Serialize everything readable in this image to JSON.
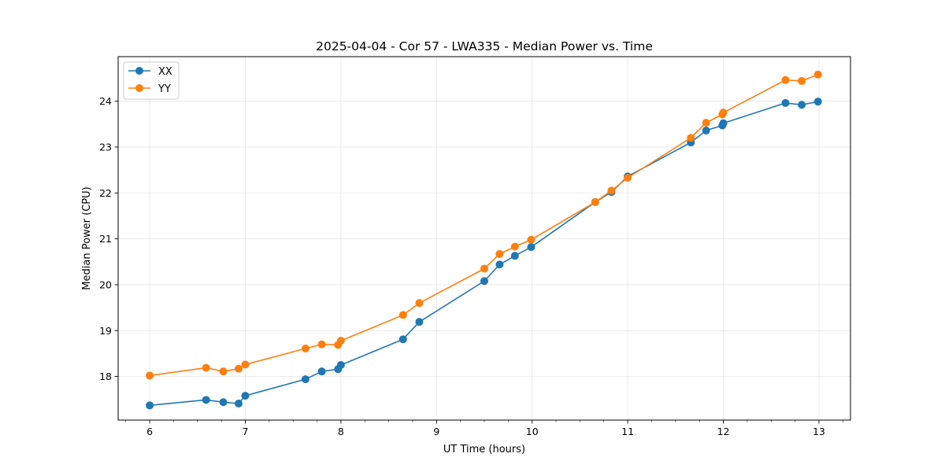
{
  "chart_data": {
    "type": "line",
    "title": "2025-04-04 - Cor 57 - LWA335 - Median Power vs. Time",
    "xlabel": "UT Time (hours)",
    "ylabel": "Median Power (CPU)",
    "xlim": [
      5.67,
      13.33
    ],
    "ylim": [
      17.05,
      24.97
    ],
    "xticks": [
      6,
      7,
      8,
      9,
      10,
      11,
      12,
      13
    ],
    "xticks_labels": [
      "6",
      "7",
      "8",
      "9",
      "10",
      "11",
      "12",
      "13"
    ],
    "x_minor_step": 0.25,
    "yticks": [
      18,
      19,
      20,
      21,
      22,
      23,
      24
    ],
    "yticks_labels": [
      "18",
      "19",
      "20",
      "21",
      "22",
      "23",
      "24"
    ],
    "grid": true,
    "legend_position": "top-left",
    "series": [
      {
        "name": "XX",
        "color": "#1f77b4",
        "x": [
          6.0,
          6.59,
          6.77,
          6.93,
          7.0,
          7.63,
          7.8,
          7.97,
          8.0,
          8.65,
          8.82,
          9.5,
          9.66,
          9.82,
          9.99,
          10.66,
          10.83,
          11.0,
          11.66,
          11.82,
          11.99,
          12.0,
          12.65,
          12.82,
          12.99
        ],
        "y": [
          17.37,
          17.49,
          17.44,
          17.41,
          17.58,
          17.94,
          18.11,
          18.16,
          18.25,
          18.81,
          19.19,
          20.08,
          20.44,
          20.63,
          20.82,
          21.8,
          22.02,
          22.36,
          23.1,
          23.36,
          23.47,
          23.52,
          23.96,
          23.92,
          23.99
        ],
        "values": [
          17.37,
          17.49,
          17.44,
          17.41,
          17.58,
          17.94,
          18.11,
          18.16,
          18.25,
          18.81,
          19.19,
          20.08,
          20.44,
          20.63,
          20.82,
          21.8,
          22.02,
          22.36,
          23.1,
          23.36,
          23.47,
          23.52,
          23.96,
          23.92,
          23.99
        ]
      },
      {
        "name": "YY",
        "color": "#ff7f0e",
        "x": [
          6.0,
          6.59,
          6.77,
          6.93,
          7.0,
          7.63,
          7.8,
          7.97,
          8.0,
          8.65,
          8.82,
          9.5,
          9.66,
          9.82,
          9.99,
          10.66,
          10.83,
          11.0,
          11.66,
          11.82,
          11.99,
          12.0,
          12.65,
          12.82,
          12.99
        ],
        "y": [
          18.02,
          18.19,
          18.11,
          18.17,
          18.26,
          18.61,
          18.7,
          18.69,
          18.78,
          19.34,
          19.6,
          20.35,
          20.67,
          20.83,
          20.98,
          21.8,
          22.05,
          22.33,
          23.2,
          23.53,
          23.71,
          23.75,
          24.46,
          24.44,
          24.58
        ],
        "values": [
          18.02,
          18.19,
          18.11,
          18.17,
          18.26,
          18.61,
          18.7,
          18.69,
          18.78,
          19.34,
          19.6,
          20.35,
          20.67,
          20.83,
          20.98,
          21.8,
          22.05,
          22.33,
          23.2,
          23.53,
          23.71,
          23.75,
          24.46,
          24.44,
          24.58
        ]
      }
    ]
  }
}
